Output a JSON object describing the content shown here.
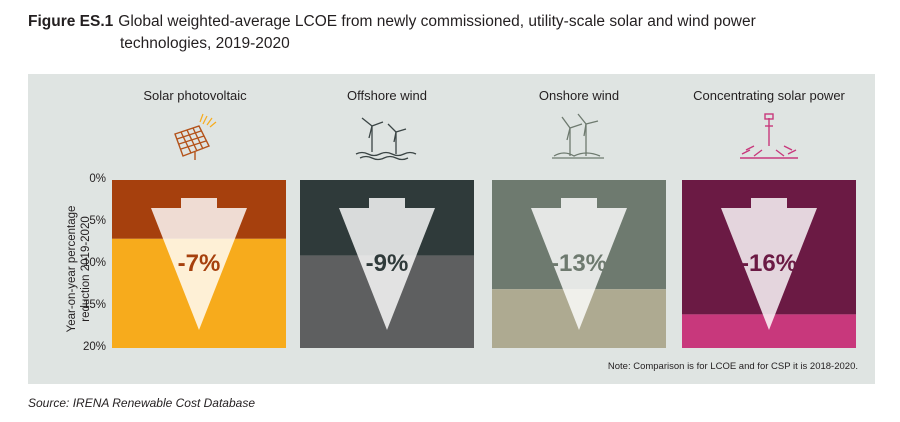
{
  "figure": {
    "label": "Figure ES.1",
    "title_line1": "Global weighted-average LCOE from newly commissioned, utility-scale solar and wind power",
    "title_line2": "technologies, 2019-2020"
  },
  "note": "Note: Comparison is for LCOE and for CSP it is 2018-2020.",
  "source": "Source: IRENA Renewable Cost Database",
  "icons": [
    "solar-panel-icon",
    "offshore-wind-turbine-icon",
    "onshore-wind-turbine-icon",
    "concentrating-solar-tower-icon"
  ],
  "chart_data": {
    "type": "bar",
    "ylabel_lines": [
      "Year-on-year percentage",
      "reduction 2019-2020"
    ],
    "yticks": [
      "0%",
      "5%",
      "10%",
      "15%",
      "20%"
    ],
    "ylim": [
      0,
      20
    ],
    "y_inverted": true,
    "categories": [
      "Solar photovoltaic",
      "Offshore wind",
      "Onshore wind",
      "Concentrating solar power"
    ],
    "values": [
      7,
      9,
      13,
      16
    ],
    "labels": [
      "-7%",
      "-9%",
      "-13%",
      "-16%"
    ],
    "colors": [
      {
        "upper": "#a6400d",
        "lower": "#f7ab1c"
      },
      {
        "upper": "#2f3a3a",
        "lower": "#5e5f60"
      },
      {
        "upper": "#6e7a6f",
        "lower": "#aeaa91"
      },
      {
        "upper": "#6b1a44",
        "lower": "#c8387c"
      }
    ]
  }
}
